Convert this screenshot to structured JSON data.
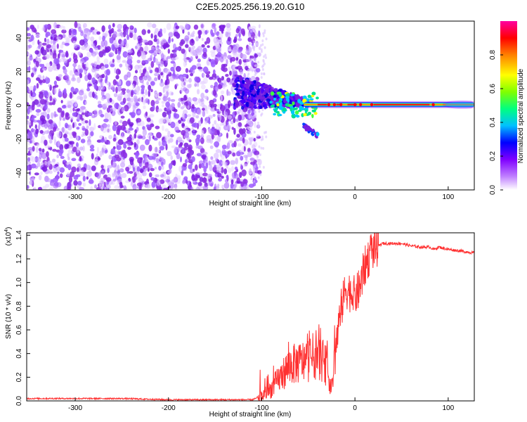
{
  "page_title": "C2E5.2025.256.19.20.G10",
  "chart_data": [
    {
      "type": "heatmap",
      "title": "C2E5.2025.256.19.20.G10",
      "xlabel": "Height of straight line (km)",
      "ylabel": "Frequency (Hz)",
      "xlim": [
        -352,
        128
      ],
      "ylim": [
        -50,
        50
      ],
      "x_ticks": [
        -300,
        -200,
        -100,
        0,
        100
      ],
      "y_ticks": [
        -40,
        -20,
        0,
        20,
        40
      ],
      "colorbar": {
        "label": "Normalized spectral amplitude",
        "range": [
          0,
          1
        ],
        "ticks": [
          0.0,
          0.2,
          0.4,
          0.6,
          0.8
        ],
        "tick_labels": [
          "0.0",
          "0.2",
          "0.4",
          "0.6",
          "0.8"
        ],
        "colors": [
          "#ffffff",
          "#c080ff",
          "#8000ff",
          "#0000ff",
          "#00c0ff",
          "#00ff80",
          "#80ff00",
          "#ffff00",
          "#ff8000",
          "#ff0000",
          "#ff00a0"
        ]
      },
      "features": {
        "noise_region_x": [
          -352,
          -110
        ],
        "noise_region_y": [
          -50,
          48
        ],
        "signal_line_freq": 0.5,
        "signal_line_x": [
          -50,
          128
        ],
        "transition_blob_x": [
          -130,
          -50
        ],
        "secondary_branch": [
          [
            -55,
            -12
          ],
          [
            -40,
            -18
          ]
        ]
      }
    },
    {
      "type": "line",
      "xlabel": "Height of straight line (km)",
      "ylabel": "SNR (10 * v/v)",
      "scale_label": "(x10",
      "scale_exponent": "4",
      "xlim": [
        -352,
        128
      ],
      "ylim": [
        0,
        1.42
      ],
      "x_ticks": [
        -300,
        -200,
        -100,
        0,
        100
      ],
      "y_ticks": [
        0.0,
        0.2,
        0.4,
        0.6,
        0.8,
        1.0,
        1.2,
        1.4
      ],
      "y_tick_labels": [
        "0.0",
        "0.2",
        "0.4",
        "0.6",
        "0.8",
        "1.0",
        "1.2",
        "1.4"
      ],
      "color": "#ff3030",
      "series": [
        {
          "name": "SNR",
          "x": [
            -352,
            -300,
            -250,
            -200,
            -150,
            -110,
            -100,
            -90,
            -80,
            -70,
            -60,
            -50,
            -40,
            -30,
            -25,
            -20,
            -15,
            -10,
            -5,
            0,
            5,
            10,
            15,
            20,
            25,
            30,
            40,
            50,
            60,
            70,
            80,
            85,
            90,
            100,
            110,
            128
          ],
          "y": [
            0.02,
            0.02,
            0.02,
            0.01,
            0.01,
            0.01,
            0.04,
            0.1,
            0.2,
            0.3,
            0.32,
            0.35,
            0.4,
            0.28,
            0.1,
            0.5,
            0.75,
            0.95,
            0.92,
            0.88,
            0.95,
            1.12,
            1.22,
            1.28,
            1.31,
            1.33,
            1.33,
            1.33,
            1.31,
            1.3,
            1.3,
            1.28,
            1.3,
            1.28,
            1.27,
            1.25
          ]
        }
      ]
    }
  ]
}
